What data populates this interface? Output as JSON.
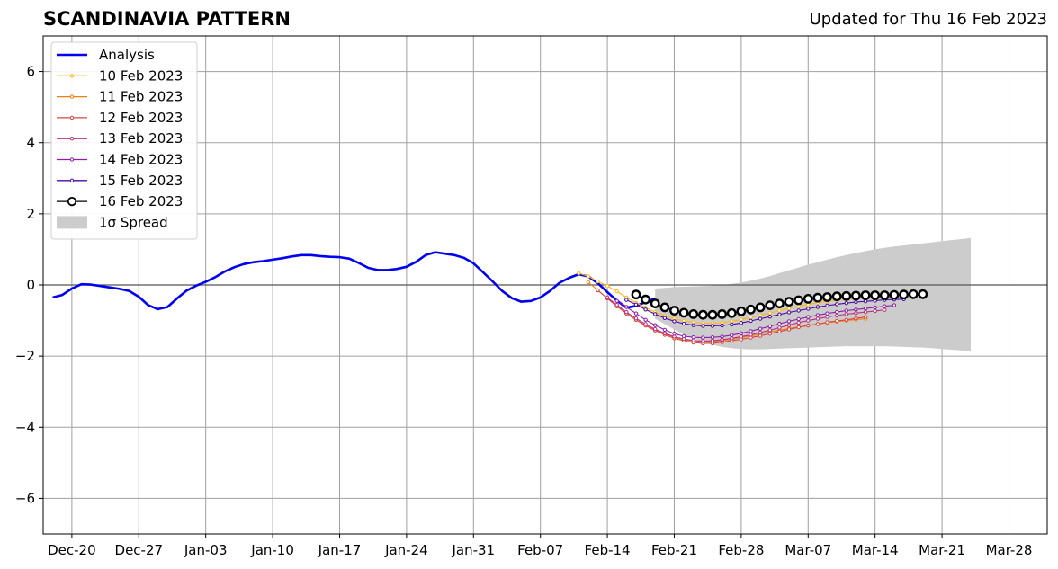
{
  "header": {
    "title": "SCANDINAVIA PATTERN",
    "updated": "Updated for Thu 16 Feb 2023"
  },
  "chart_data": {
    "type": "line",
    "title": "SCANDINAVIA PATTERN",
    "subtitle": "Updated for Thu 16 Feb 2023",
    "xlabel": "",
    "ylabel": "",
    "x_range": [
      "2022-12-17",
      "2023-04-01"
    ],
    "ylim": [
      -7,
      7
    ],
    "grid": true,
    "legend_position": "top-left",
    "x_ticks": [
      "Dec-20",
      "Dec-27",
      "Jan-03",
      "Jan-10",
      "Jan-17",
      "Jan-24",
      "Jan-31",
      "Feb-07",
      "Feb-14",
      "Feb-21",
      "Feb-28",
      "Mar-07",
      "Mar-14",
      "Mar-21",
      "Mar-28"
    ],
    "x_tick_dates": [
      "2022-12-20",
      "2022-12-27",
      "2023-01-03",
      "2023-01-10",
      "2023-01-17",
      "2023-01-24",
      "2023-01-31",
      "2023-02-07",
      "2023-02-14",
      "2023-02-21",
      "2023-02-28",
      "2023-03-07",
      "2023-03-14",
      "2023-03-21",
      "2023-03-28"
    ],
    "y_ticks": [
      "6",
      "4",
      "2",
      "0",
      "−2",
      "−4",
      "−6"
    ],
    "y_tick_values": [
      6,
      4,
      2,
      0,
      -2,
      -4,
      -6
    ],
    "analysis": {
      "name": "Analysis",
      "color": "#0000ee",
      "start": "2022-12-18",
      "values": [
        -0.35,
        -0.28,
        -0.1,
        0.02,
        0.01,
        -0.03,
        -0.07,
        -0.11,
        -0.17,
        -0.33,
        -0.57,
        -0.68,
        -0.62,
        -0.38,
        -0.16,
        -0.02,
        0.09,
        0.22,
        0.38,
        0.5,
        0.59,
        0.64,
        0.67,
        0.71,
        0.75,
        0.8,
        0.84,
        0.84,
        0.81,
        0.79,
        0.78,
        0.74,
        0.62,
        0.48,
        0.42,
        0.42,
        0.45,
        0.51,
        0.65,
        0.84,
        0.92,
        0.88,
        0.84,
        0.76,
        0.61,
        0.36,
        0.1,
        -0.17,
        -0.37,
        -0.47,
        -0.45,
        -0.35,
        -0.17,
        0.06,
        0.2,
        0.3,
        0.24,
        0.05,
        -0.2,
        -0.44,
        -0.64,
        -0.59,
        -0.48,
        -0.38
      ]
    },
    "forecasts": [
      {
        "name": "10 Feb 2023",
        "color": "#fbb61a",
        "start": "2023-02-11",
        "values": [
          0.33,
          0.24,
          0.1,
          -0.03,
          -0.18,
          -0.35,
          -0.5,
          -0.64,
          -0.76,
          -0.87,
          -0.95,
          -1.01,
          -1.05,
          -1.08,
          -1.08,
          -1.06,
          -1.02,
          -0.97,
          -0.91,
          -0.85,
          -0.79,
          -0.72,
          -0.66,
          -0.6,
          -0.55,
          -0.5,
          -0.46,
          -0.42,
          -0.39,
          -0.36,
          -0.33,
          -0.31
        ]
      },
      {
        "name": "11 Feb 2023",
        "color": "#f57d15",
        "start": "2023-02-12",
        "values": [
          0.08,
          -0.15,
          -0.38,
          -0.6,
          -0.8,
          -0.98,
          -1.14,
          -1.27,
          -1.38,
          -1.47,
          -1.54,
          -1.58,
          -1.6,
          -1.59,
          -1.57,
          -1.53,
          -1.48,
          -1.43,
          -1.38,
          -1.32,
          -1.27,
          -1.22,
          -1.18,
          -1.14,
          -1.1,
          -1.06,
          -1.03,
          -1.0,
          -0.97,
          -0.95
        ]
      },
      {
        "name": "12 Feb 2023",
        "color": "#d44842",
        "start": "2023-02-13",
        "values": [
          -0.15,
          -0.38,
          -0.6,
          -0.8,
          -0.98,
          -1.14,
          -1.28,
          -1.4,
          -1.5,
          -1.57,
          -1.62,
          -1.64,
          -1.64,
          -1.61,
          -1.57,
          -1.53,
          -1.48,
          -1.43,
          -1.37,
          -1.31,
          -1.25,
          -1.19,
          -1.14,
          -1.1,
          -1.05,
          -1.01,
          -0.98,
          -0.94,
          -0.9
        ]
      },
      {
        "name": "13 Feb 2023",
        "color": "#b8337e",
        "start": "2023-02-14",
        "values": [
          -0.35,
          -0.56,
          -0.76,
          -0.94,
          -1.1,
          -1.24,
          -1.36,
          -1.45,
          -1.52,
          -1.56,
          -1.58,
          -1.57,
          -1.54,
          -1.5,
          -1.45,
          -1.4,
          -1.34,
          -1.27,
          -1.2,
          -1.13,
          -1.06,
          -1.0,
          -0.95,
          -0.9,
          -0.86,
          -0.82,
          -0.79,
          -0.76,
          -0.73,
          -0.7
        ]
      },
      {
        "name": "14 Feb 2023",
        "color": "#8a1fa8",
        "start": "2023-02-15",
        "values": [
          -0.45,
          -0.62,
          -0.8,
          -0.98,
          -1.13,
          -1.26,
          -1.37,
          -1.44,
          -1.47,
          -1.48,
          -1.47,
          -1.45,
          -1.41,
          -1.36,
          -1.3,
          -1.23,
          -1.16,
          -1.09,
          -1.02,
          -0.96,
          -0.9,
          -0.85,
          -0.8,
          -0.76,
          -0.72,
          -0.69,
          -0.66,
          -0.63,
          -0.6,
          -0.57
        ]
      },
      {
        "name": "15 Feb 2023",
        "color": "#4a0ba0",
        "start": "2023-02-16",
        "values": [
          -0.42,
          -0.55,
          -0.69,
          -0.82,
          -0.93,
          -1.02,
          -1.09,
          -1.13,
          -1.15,
          -1.15,
          -1.14,
          -1.11,
          -1.07,
          -1.01,
          -0.95,
          -0.89,
          -0.83,
          -0.77,
          -0.72,
          -0.67,
          -0.62,
          -0.58,
          -0.54,
          -0.51,
          -0.48,
          -0.46,
          -0.44,
          -0.42,
          -0.41,
          -0.4
        ]
      },
      {
        "name": "16 Feb 2023",
        "color": "#000000",
        "start": "2023-02-17",
        "values": [
          -0.27,
          -0.41,
          -0.52,
          -0.63,
          -0.72,
          -0.78,
          -0.82,
          -0.84,
          -0.84,
          -0.82,
          -0.79,
          -0.74,
          -0.69,
          -0.63,
          -0.57,
          -0.52,
          -0.47,
          -0.43,
          -0.39,
          -0.36,
          -0.34,
          -0.32,
          -0.31,
          -0.3,
          -0.29,
          -0.29,
          -0.29,
          -0.28,
          -0.27,
          -0.26,
          -0.26
        ]
      }
    ],
    "spread": {
      "name": "1σ Spread",
      "color": "#cccccc",
      "start": "2023-02-19",
      "upper": [
        -0.1,
        -0.08,
        -0.06,
        -0.05,
        -0.04,
        -0.03,
        -0.02,
        0.0,
        0.03,
        0.07,
        0.12,
        0.18,
        0.25,
        0.33,
        0.41,
        0.49,
        0.57,
        0.64,
        0.71,
        0.78,
        0.84,
        0.9,
        0.95,
        1.0,
        1.04,
        1.08,
        1.11,
        1.14,
        1.17,
        1.2,
        1.23,
        1.26,
        1.29,
        1.32
      ],
      "lower": [
        -0.95,
        -1.1,
        -1.25,
        -1.4,
        -1.5,
        -1.6,
        -1.68,
        -1.74,
        -1.78,
        -1.8,
        -1.81,
        -1.81,
        -1.8,
        -1.79,
        -1.78,
        -1.77,
        -1.76,
        -1.75,
        -1.74,
        -1.73,
        -1.72,
        -1.72,
        -1.72,
        -1.72,
        -1.72,
        -1.73,
        -1.74,
        -1.75,
        -1.76,
        -1.78,
        -1.8,
        -1.82,
        -1.84,
        -1.86
      ]
    }
  }
}
